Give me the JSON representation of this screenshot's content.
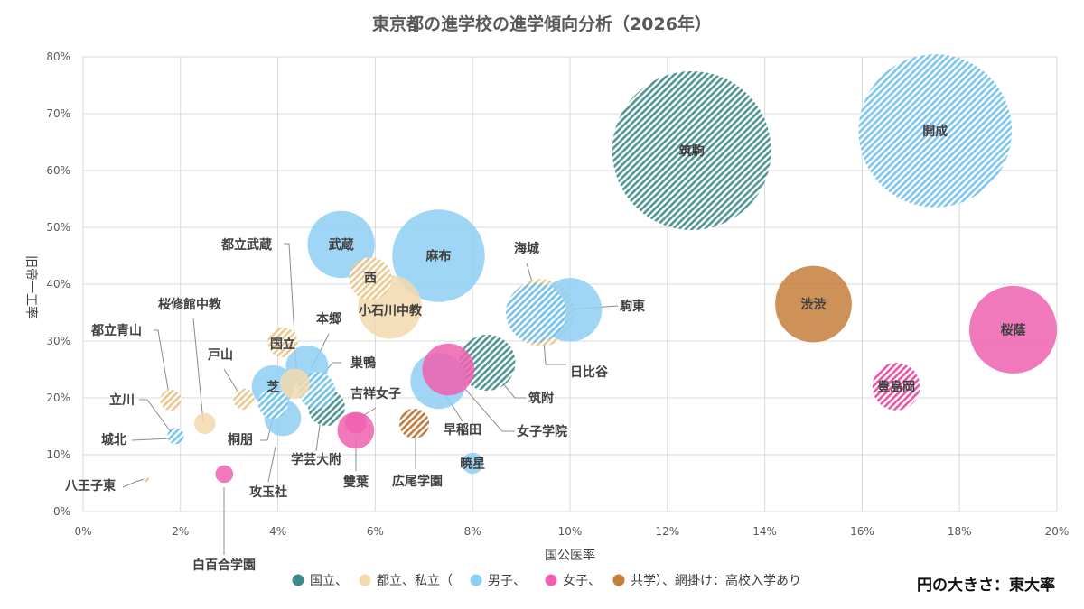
{
  "chart_data": {
    "type": "bubble",
    "title": "東京都の進学校の進学傾向分析（2026年）",
    "xlabel": "国公医率",
    "ylabel": "旧帝一工率",
    "xlim": [
      0,
      0.2
    ],
    "ylim": [
      0,
      0.8
    ],
    "x_ticks": [
      0,
      0.02,
      0.04,
      0.06,
      0.08,
      0.1,
      0.12,
      0.14,
      0.16,
      0.18,
      0.2
    ],
    "x_tick_labels": [
      "0%",
      "2%",
      "4%",
      "6%",
      "8%",
      "10%",
      "12%",
      "14%",
      "16%",
      "18%",
      "20%"
    ],
    "y_ticks": [
      0,
      0.1,
      0.2,
      0.3,
      0.4,
      0.5,
      0.6,
      0.7,
      0.8
    ],
    "y_tick_labels": [
      "0%",
      "10%",
      "20%",
      "30%",
      "40%",
      "50%",
      "60%",
      "70%",
      "80%"
    ],
    "grid": true,
    "size_note": "円の大きさ：東大率",
    "legend": {
      "placement": "bottom",
      "items": [
        {
          "label": "国立、",
          "color": "#3d8b88"
        },
        {
          "label": "都立、私立（",
          "color": "#f2d9ae"
        },
        {
          "label": "男子、",
          "color": "#8ecff5"
        },
        {
          "label": "女子、",
          "color": "#f060b0"
        },
        {
          "label": "共学）、網掛け：高校入学あり",
          "color": "#c67e3b"
        }
      ]
    },
    "categories": {
      "national": "#3d8b88",
      "public": "#f2d9ae",
      "boys": "#8ecff5",
      "girls": "#f060b0",
      "coed": "#c67e3b"
    },
    "points": [
      {
        "name": "筑駒",
        "x": 0.125,
        "y": 0.635,
        "tokyo": 0.56,
        "cat": "national",
        "hatch": true
      },
      {
        "name": "開成",
        "x": 0.175,
        "y": 0.67,
        "tokyo": 0.52,
        "cat": "boys",
        "hatch": true
      },
      {
        "name": "渋渋",
        "x": 0.15,
        "y": 0.365,
        "tokyo": 0.13,
        "cat": "coed",
        "hatch": false
      },
      {
        "name": "桜蔭",
        "x": 0.191,
        "y": 0.32,
        "tokyo": 0.17,
        "cat": "girls",
        "hatch": false
      },
      {
        "name": "豊島岡",
        "x": 0.167,
        "y": 0.22,
        "tokyo": 0.05,
        "cat": "girls",
        "hatch": true
      },
      {
        "name": "麻布",
        "x": 0.073,
        "y": 0.45,
        "tokyo": 0.19,
        "cat": "boys",
        "hatch": false
      },
      {
        "name": "武蔵",
        "x": 0.053,
        "y": 0.47,
        "tokyo": 0.1,
        "cat": "boys",
        "hatch": false
      },
      {
        "name": "西",
        "x": 0.059,
        "y": 0.41,
        "tokyo": 0.04,
        "cat": "public",
        "hatch": true
      },
      {
        "name": "小石川中教",
        "x": 0.063,
        "y": 0.36,
        "tokyo": 0.09,
        "cat": "public",
        "hatch": false
      },
      {
        "name": "日比谷",
        "x": 0.094,
        "y": 0.35,
        "tokyo": 0.1,
        "cat": "public",
        "hatch": true
      },
      {
        "name": "海城",
        "x": 0.093,
        "y": 0.35,
        "tokyo": 0.08,
        "cat": "boys",
        "hatch": true
      },
      {
        "name": "駒東",
        "x": 0.1,
        "y": 0.355,
        "tokyo": 0.09,
        "cat": "boys",
        "hatch": false
      },
      {
        "name": "筑附",
        "x": 0.083,
        "y": 0.262,
        "tokyo": 0.07,
        "cat": "national",
        "hatch": true
      },
      {
        "name": "女子学院",
        "x": 0.075,
        "y": 0.25,
        "tokyo": 0.06,
        "cat": "girls",
        "hatch": false
      },
      {
        "name": "早稲田",
        "x": 0.073,
        "y": 0.23,
        "tokyo": 0.07,
        "cat": "boys",
        "hatch": false
      },
      {
        "name": "暁星",
        "x": 0.08,
        "y": 0.085,
        "tokyo": 0.01,
        "cat": "boys",
        "hatch": false
      },
      {
        "name": "広尾学園",
        "x": 0.068,
        "y": 0.155,
        "tokyo": 0.02,
        "cat": "coed",
        "hatch": true
      },
      {
        "name": "雙葉",
        "x": 0.056,
        "y": 0.143,
        "tokyo": 0.03,
        "cat": "girls",
        "hatch": false
      },
      {
        "name": "吉祥女子",
        "x": 0.056,
        "y": 0.156,
        "tokyo": 0.01,
        "cat": "girls",
        "hatch": false
      },
      {
        "name": "学芸大附",
        "x": 0.05,
        "y": 0.183,
        "tokyo": 0.03,
        "cat": "national",
        "hatch": true
      },
      {
        "name": "巣鴨",
        "x": 0.048,
        "y": 0.213,
        "tokyo": 0.03,
        "cat": "boys",
        "hatch": true
      },
      {
        "name": "本郷",
        "x": 0.046,
        "y": 0.255,
        "tokyo": 0.04,
        "cat": "boys",
        "hatch": false
      },
      {
        "name": "国立",
        "x": 0.041,
        "y": 0.298,
        "tokyo": 0.02,
        "cat": "public",
        "hatch": true
      },
      {
        "name": "都立武蔵",
        "x": 0.0435,
        "y": 0.225,
        "tokyo": 0.02,
        "cat": "public",
        "hatch": false
      },
      {
        "name": "芝",
        "x": 0.039,
        "y": 0.22,
        "tokyo": 0.04,
        "cat": "boys",
        "hatch": false
      },
      {
        "name": "攻玉社",
        "x": 0.041,
        "y": 0.165,
        "tokyo": 0.03,
        "cat": "boys",
        "hatch": false
      },
      {
        "name": "桐朋",
        "x": 0.039,
        "y": 0.19,
        "tokyo": 0.02,
        "cat": "boys",
        "hatch": true
      },
      {
        "name": "戸山",
        "x": 0.033,
        "y": 0.198,
        "tokyo": 0.01,
        "cat": "public",
        "hatch": true
      },
      {
        "name": "桜修館中教",
        "x": 0.025,
        "y": 0.155,
        "tokyo": 0.01,
        "cat": "public",
        "hatch": false
      },
      {
        "name": "都立青山",
        "x": 0.018,
        "y": 0.196,
        "tokyo": 0.01,
        "cat": "public",
        "hatch": true
      },
      {
        "name": "立川",
        "x": 0.018,
        "y": 0.196,
        "tokyo": 0.004,
        "cat": "public",
        "hatch": true
      },
      {
        "name": "城北",
        "x": 0.019,
        "y": 0.133,
        "tokyo": 0.006,
        "cat": "boys",
        "hatch": true
      },
      {
        "name": "白百合学園",
        "x": 0.029,
        "y": 0.066,
        "tokyo": 0.007,
        "cat": "girls",
        "hatch": false
      },
      {
        "name": "八王子東",
        "x": 0.013,
        "y": 0.057,
        "tokyo": 0.0005,
        "cat": "public",
        "hatch": true
      }
    ]
  }
}
